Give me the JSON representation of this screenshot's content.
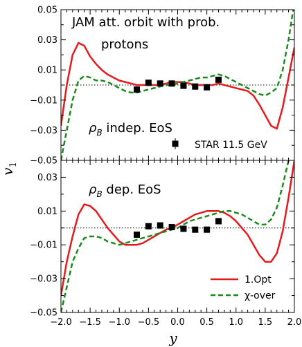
{
  "chart_data": {
    "type": "line",
    "xlabel": "y",
    "ylabel": "v1",
    "xlim": [
      -2.0,
      2.0
    ],
    "x_ticks": [
      "−2.0",
      "−1.5",
      "−1.0",
      "−0.5",
      "0.0",
      "0.5",
      "1.0",
      "1.5",
      "2.0"
    ],
    "y_ticks_top": [
      "0.05",
      "0.03",
      "0.01",
      "−0.01",
      "−0.03",
      "−0.05"
    ],
    "y_ticks_bottom": [
      "0.03",
      "0.01",
      "−0.01",
      "−0.03",
      "−0.05"
    ],
    "colors": {
      "opt": "#e41a1c",
      "xover": "#1b8a1b",
      "data": "#000000",
      "ref": "#000000"
    },
    "legend": {
      "placement": "lower-right",
      "items": [
        "1.Opt",
        "χ-over"
      ]
    },
    "panels": [
      {
        "id": "top",
        "ylim": [
          -0.05,
          0.05
        ],
        "annotations": {
          "line1": "JAM att. orbit with prob.",
          "line2": "protons",
          "eos_sym": "ρ",
          "eos_sub": "B",
          "eos_text": " indep. EoS",
          "star_label": "STAR 11.5 GeV"
        },
        "series": [
          {
            "name": "1.Opt",
            "x": [
              -2.0,
              -1.9,
              -1.8,
              -1.7,
              -1.6,
              -1.5,
              -1.4,
              -1.3,
              -1.2,
              -1.1,
              -1.0,
              -0.9,
              -0.8,
              -0.7,
              -0.6,
              -0.5,
              -0.4,
              -0.3,
              -0.2,
              -0.1,
              0.0,
              0.1,
              0.2,
              0.3,
              0.4,
              0.5,
              0.6,
              0.7,
              0.8,
              0.9,
              1.0,
              1.1,
              1.2,
              1.3,
              1.4,
              1.5,
              1.6,
              1.7,
              1.8,
              1.9,
              2.0
            ],
            "y": [
              -0.027,
              0.0,
              0.02,
              0.028,
              0.026,
              0.019,
              0.014,
              0.01,
              0.007,
              0.005,
              0.003,
              0.002,
              0.001,
              0.0,
              0.0,
              0.0,
              0.0,
              0.0,
              0.001,
              0.002,
              0.002,
              0.002,
              0.001,
              0.0,
              0.0,
              0.0,
              0.0,
              0.001,
              0.0,
              -0.001,
              -0.002,
              -0.003,
              -0.004,
              -0.007,
              -0.013,
              -0.02,
              -0.027,
              -0.029,
              -0.015,
              0.005,
              0.025
            ]
          },
          {
            "name": "χ-over",
            "x": [
              -2.0,
              -1.9,
              -1.8,
              -1.7,
              -1.6,
              -1.5,
              -1.4,
              -1.3,
              -1.2,
              -1.1,
              -1.0,
              -0.9,
              -0.8,
              -0.7,
              -0.6,
              -0.5,
              -0.4,
              -0.3,
              -0.2,
              -0.1,
              0.0,
              0.1,
              0.2,
              0.3,
              0.4,
              0.5,
              0.6,
              0.7,
              0.8,
              0.9,
              1.0,
              1.1,
              1.2,
              1.3,
              1.4,
              1.5,
              1.6,
              1.7,
              1.8,
              1.9,
              2.0
            ],
            "y": [
              -0.05,
              -0.03,
              -0.01,
              0.003,
              0.006,
              0.005,
              0.003,
              0.003,
              0.002,
              0.0,
              -0.002,
              -0.004,
              -0.005,
              -0.005,
              -0.004,
              -0.003,
              -0.002,
              -0.001,
              0.0,
              0.0,
              0.001,
              0.002,
              0.003,
              0.004,
              0.005,
              0.005,
              0.006,
              0.007,
              0.006,
              0.004,
              0.002,
              0.0,
              -0.002,
              -0.004,
              -0.006,
              -0.007,
              -0.005,
              -0.002,
              0.01,
              0.03,
              0.055
            ]
          }
        ],
        "data_points": {
          "x": [
            -0.7,
            -0.5,
            -0.3,
            -0.1,
            0.1,
            0.3,
            0.5,
            0.7
          ],
          "y": [
            -0.003,
            0.0015,
            0.001,
            0.001,
            -0.0005,
            -0.001,
            -0.0015,
            0.0035
          ]
        }
      },
      {
        "id": "bottom",
        "ylim": [
          -0.05,
          0.04
        ],
        "annotations": {
          "eos_sym": "ρ",
          "eos_sub": "B",
          "eos_text": " dep. EoS"
        },
        "series": [
          {
            "name": "1.Opt",
            "x": [
              -2.0,
              -1.9,
              -1.8,
              -1.7,
              -1.6,
              -1.5,
              -1.4,
              -1.3,
              -1.2,
              -1.1,
              -1.0,
              -0.9,
              -0.8,
              -0.7,
              -0.6,
              -0.5,
              -0.4,
              -0.3,
              -0.2,
              -0.1,
              0.0,
              0.1,
              0.2,
              0.3,
              0.4,
              0.5,
              0.6,
              0.7,
              0.8,
              0.9,
              1.0,
              1.1,
              1.2,
              1.3,
              1.4,
              1.5,
              1.6,
              1.7,
              1.8,
              1.9,
              2.0
            ],
            "y": [
              -0.04,
              -0.02,
              -0.005,
              0.008,
              0.014,
              0.013,
              0.01,
              0.005,
              0.0,
              -0.004,
              -0.008,
              -0.01,
              -0.01,
              -0.01,
              -0.009,
              -0.007,
              -0.005,
              -0.003,
              -0.001,
              0.0,
              0.002,
              0.004,
              0.006,
              0.008,
              0.009,
              0.01,
              0.01,
              0.01,
              0.009,
              0.007,
              0.004,
              0.0,
              -0.004,
              -0.01,
              -0.016,
              -0.02,
              -0.02,
              -0.015,
              -0.002,
              0.018,
              0.04
            ]
          },
          {
            "name": "χ-over",
            "x": [
              -2.0,
              -1.9,
              -1.8,
              -1.7,
              -1.6,
              -1.5,
              -1.4,
              -1.3,
              -1.2,
              -1.1,
              -1.0,
              -0.9,
              -0.8,
              -0.7,
              -0.6,
              -0.5,
              -0.4,
              -0.3,
              -0.2,
              -0.1,
              0.0,
              0.1,
              0.2,
              0.3,
              0.4,
              0.5,
              0.6,
              0.7,
              0.8,
              0.9,
              1.0,
              1.1,
              1.2,
              1.3,
              1.4,
              1.5,
              1.6,
              1.7,
              1.8,
              1.9,
              2.0
            ],
            "y": [
              -0.05,
              -0.035,
              -0.02,
              -0.012,
              -0.006,
              -0.005,
              -0.005,
              -0.006,
              -0.008,
              -0.009,
              -0.01,
              -0.009,
              -0.008,
              -0.007,
              -0.006,
              -0.005,
              -0.004,
              -0.003,
              -0.002,
              -0.001,
              0.0,
              0.002,
              0.004,
              0.005,
              0.006,
              0.007,
              0.008,
              0.009,
              0.01,
              0.01,
              0.009,
              0.008,
              0.006,
              0.004,
              0.002,
              0.002,
              0.005,
              0.012,
              0.025,
              0.04,
              0.05
            ]
          }
        ],
        "data_points": {
          "x": [
            -0.7,
            -0.5,
            -0.3,
            -0.1,
            0.1,
            0.3,
            0.5,
            0.7
          ],
          "y": [
            -0.004,
            0.001,
            0.0015,
            0.0005,
            -0.0005,
            -0.001,
            -0.001,
            0.004
          ]
        }
      }
    ]
  }
}
